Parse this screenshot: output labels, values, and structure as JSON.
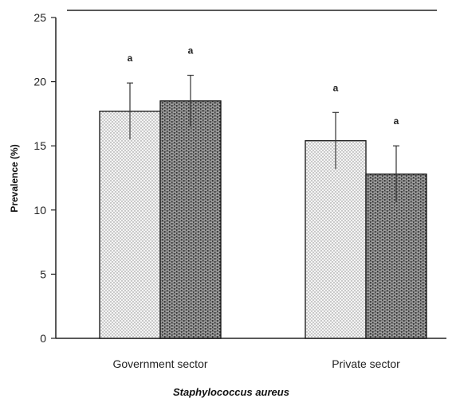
{
  "chart_data": {
    "type": "bar",
    "title": "",
    "xlabel": "Staphylococcus aureus",
    "ylabel": "Prevalence (%)",
    "ylim": [
      0,
      25
    ],
    "yticks": [
      "0",
      "5",
      "10",
      "15",
      "20",
      "25"
    ],
    "categories": [
      "Government sector",
      "Private sector"
    ],
    "series": [
      {
        "values": [
          17.7,
          15.4
        ],
        "errors": [
          2.2,
          2.2
        ],
        "significance": [
          "a",
          "a"
        ],
        "fill_pattern": "dotted",
        "color": "#d9d9d9"
      },
      {
        "values": [
          18.5,
          12.8
        ],
        "errors": [
          2.0,
          2.2
        ],
        "significance": [
          "a",
          "a"
        ],
        "fill_pattern": "brick",
        "color": "#555555"
      }
    ],
    "grid": false,
    "legend": "none"
  }
}
